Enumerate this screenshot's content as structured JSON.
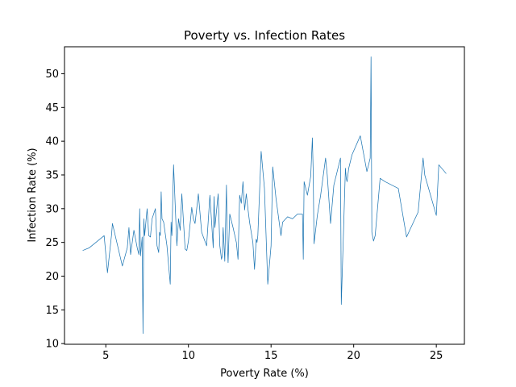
{
  "chart_data": {
    "type": "line",
    "title": "Poverty vs. Infection Rates",
    "xlabel": "Poverty Rate (%)",
    "ylabel": "Infection Rate (%)",
    "xlim": [
      2.5,
      26.7
    ],
    "ylim": [
      9.9,
      54.0
    ],
    "xticks": [
      5,
      10,
      15,
      20,
      25
    ],
    "yticks": [
      10,
      15,
      20,
      25,
      30,
      35,
      40,
      45,
      50
    ],
    "grid": false,
    "legend": "none",
    "line_color": "#1f77b4",
    "series": [
      {
        "x": [
          3.6,
          4.0,
          4.9,
          5.1,
          5.35,
          5.4,
          6.0,
          6.3,
          6.4,
          6.5,
          6.7,
          6.9,
          7.0,
          7.05,
          7.1,
          7.2,
          7.25,
          7.3,
          7.35,
          7.5,
          7.6,
          7.7,
          7.8,
          8.0,
          8.1,
          8.2,
          8.25,
          8.3,
          8.35,
          8.4,
          8.5,
          8.7,
          8.9,
          8.95,
          9.0,
          9.1,
          9.3,
          9.4,
          9.5,
          9.6,
          9.8,
          9.9,
          10.0,
          10.2,
          10.3,
          10.4,
          10.6,
          10.8,
          10.95,
          11.1,
          11.3,
          11.5,
          11.55,
          11.6,
          11.8,
          11.9,
          12.0,
          12.05,
          12.1,
          12.2,
          12.3,
          12.35,
          12.4,
          12.5,
          12.7,
          12.9,
          13.0,
          13.1,
          13.2,
          13.3,
          13.4,
          13.5,
          13.6,
          13.7,
          13.8,
          13.9,
          14.0,
          14.1,
          14.15,
          14.2,
          14.4,
          14.6,
          14.8,
          15.0,
          15.1,
          15.3,
          15.6,
          15.7,
          16.0,
          16.3,
          16.6,
          16.9,
          16.95,
          17.0,
          17.2,
          17.4,
          17.5,
          17.55,
          17.6,
          17.8,
          18.0,
          18.3,
          18.4,
          18.6,
          18.8,
          19.2,
          19.25,
          19.5,
          19.55,
          19.6,
          19.7,
          19.9,
          20.4,
          20.8,
          21.0,
          21.05,
          21.1,
          21.2,
          21.3,
          21.6,
          21.9,
          22.7,
          23.2,
          23.9,
          24.2,
          24.3,
          25.0,
          25.15,
          25.6
        ],
        "y": [
          23.8,
          24.2,
          26.0,
          20.5,
          26.2,
          27.8,
          21.5,
          24.2,
          27.2,
          23.2,
          26.8,
          24.2,
          23.2,
          30.0,
          23.0,
          25.8,
          11.5,
          28.5,
          26.0,
          30.0,
          26.0,
          25.8,
          28.5,
          30.0,
          24.5,
          23.5,
          26.5,
          26.0,
          32.5,
          28.5,
          28.0,
          24.5,
          18.8,
          28.0,
          26.0,
          36.5,
          24.5,
          28.5,
          26.8,
          32.2,
          24.0,
          23.8,
          25.2,
          30.2,
          28.5,
          27.8,
          32.2,
          26.5,
          25.5,
          24.5,
          32.0,
          24.2,
          31.8,
          27.2,
          32.2,
          24.5,
          22.5,
          23.0,
          27.2,
          22.2,
          33.5,
          25.5,
          22.0,
          29.2,
          27.2,
          25.0,
          22.5,
          32.0,
          30.8,
          34.0,
          29.8,
          32.2,
          30.0,
          28.0,
          26.5,
          25.0,
          21.0,
          25.5,
          25.0,
          26.0,
          38.5,
          33.0,
          18.8,
          24.5,
          36.2,
          31.5,
          26.0,
          28.0,
          28.8,
          28.5,
          29.2,
          29.2,
          22.5,
          34.0,
          32.0,
          34.8,
          40.5,
          35.5,
          24.8,
          29.0,
          32.0,
          37.5,
          35.0,
          27.8,
          33.5,
          37.5,
          15.8,
          36.0,
          34.5,
          34.0,
          36.0,
          38.0,
          40.8,
          35.5,
          37.5,
          52.5,
          26.5,
          25.2,
          26.0,
          34.5,
          34.0,
          33.0,
          25.8,
          29.5,
          37.5,
          35.0,
          29.0,
          36.5,
          35.2
        ]
      }
    ]
  }
}
